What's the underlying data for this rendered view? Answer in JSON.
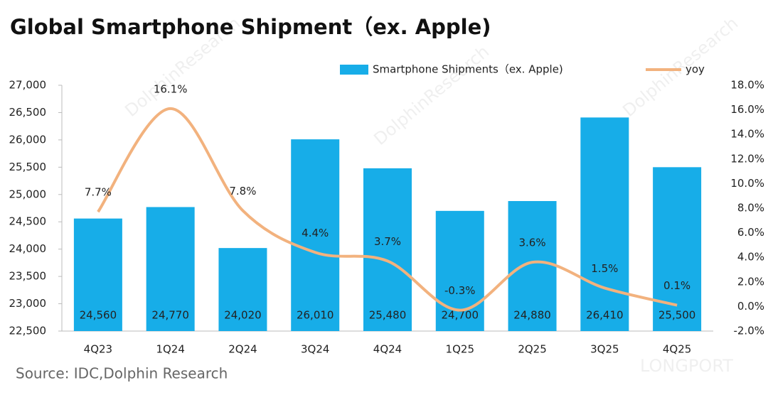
{
  "chart_data": {
    "type": "bar-line",
    "title": "Global Smartphone Shipment（ex. Apple)",
    "source": "Source: IDC,Dolphin Research",
    "watermarks": [
      "DolphinResearch",
      "LONGPORT"
    ],
    "categories": [
      "4Q23",
      "1Q24",
      "2Q24",
      "3Q24",
      "4Q24",
      "1Q25",
      "2Q25",
      "3Q25",
      "4Q25"
    ],
    "series": [
      {
        "name": "Smartphone Shipments（ex. Apple)",
        "type": "bar",
        "color": "#17ade8",
        "values": [
          24560,
          24770,
          24020,
          26010,
          25480,
          24700,
          24880,
          26410,
          25500
        ],
        "value_labels": [
          "24,560",
          "24,770",
          "24,020",
          "26,010",
          "25,480",
          "24,700",
          "24,880",
          "26,410",
          "25,500"
        ]
      },
      {
        "name": "yoy",
        "type": "line",
        "axis": "y2",
        "color": "#f2b27e",
        "values": [
          7.7,
          16.1,
          7.8,
          4.4,
          3.7,
          -0.3,
          3.6,
          1.5,
          0.1
        ],
        "value_labels": [
          "7.7%",
          "16.1%",
          "7.8%",
          "4.4%",
          "3.7%",
          "-0.3%",
          "3.6%",
          "1.5%",
          "0.1%"
        ]
      }
    ],
    "ylim": [
      22500,
      27000
    ],
    "yticks": [
      {
        "value": 22500,
        "label": "22,500"
      },
      {
        "value": 23000,
        "label": "23,000"
      },
      {
        "value": 23500,
        "label": "23,500"
      },
      {
        "value": 24000,
        "label": "24,000"
      },
      {
        "value": 24500,
        "label": "24,500"
      },
      {
        "value": 25000,
        "label": "25,000"
      },
      {
        "value": 25500,
        "label": "25,500"
      },
      {
        "value": 26000,
        "label": "26,000"
      },
      {
        "value": 26500,
        "label": "26,500"
      },
      {
        "value": 27000,
        "label": "27,000"
      }
    ],
    "y2lim": [
      -2,
      18
    ],
    "y2ticks": [
      {
        "value": -2,
        "label": "-2.0%"
      },
      {
        "value": 0,
        "label": "0.0%"
      },
      {
        "value": 2,
        "label": "2.0%"
      },
      {
        "value": 4,
        "label": "4.0%"
      },
      {
        "value": 6,
        "label": "6.0%"
      },
      {
        "value": 8,
        "label": "8.0%"
      },
      {
        "value": 10,
        "label": "10.0%"
      },
      {
        "value": 12,
        "label": "12.0%"
      },
      {
        "value": 14,
        "label": "14.0%"
      },
      {
        "value": 16,
        "label": "16.0%"
      },
      {
        "value": 18,
        "label": "18.0%"
      }
    ],
    "legend": "top-right"
  }
}
